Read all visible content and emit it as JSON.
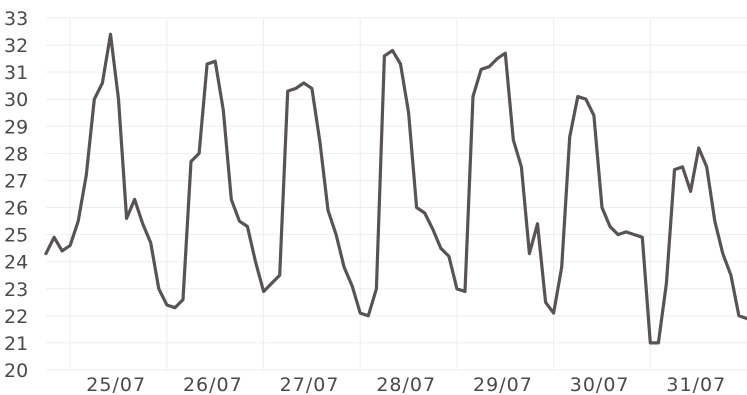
{
  "chart_data": {
    "type": "line",
    "title": "",
    "xlabel": "",
    "ylabel": "",
    "ylim": [
      20,
      33
    ],
    "yticks": [
      "20",
      "21",
      "22",
      "23",
      "24",
      "25",
      "26",
      "27",
      "28",
      "29",
      "30",
      "31",
      "32",
      "33"
    ],
    "xticks": [
      "25/07",
      "26/07",
      "27/07",
      "28/07",
      "29/07",
      "30/07",
      "31/07"
    ],
    "xlim": [
      "24/07 18:00",
      "31/07 24:00"
    ],
    "grid": true,
    "series_color": "#5a5354",
    "series": [
      {
        "x": [
          "24/07 18:00",
          "24/07 20:00",
          "24/07 22:00",
          "25/07 00:00",
          "25/07 02:00",
          "25/07 04:00",
          "25/07 06:00",
          "25/07 08:00",
          "25/07 10:00",
          "25/07 12:00",
          "25/07 14:00",
          "25/07 16:00",
          "25/07 18:00",
          "25/07 20:00",
          "25/07 22:00",
          "26/07 00:00",
          "26/07 02:00",
          "26/07 04:00",
          "26/07 06:00",
          "26/07 08:00",
          "26/07 10:00",
          "26/07 12:00",
          "26/07 14:00",
          "26/07 16:00",
          "26/07 18:00",
          "26/07 20:00",
          "26/07 22:00",
          "27/07 00:00",
          "27/07 02:00",
          "27/07 04:00",
          "27/07 06:00",
          "27/07 08:00",
          "27/07 10:00",
          "27/07 12:00",
          "27/07 14:00",
          "27/07 16:00",
          "27/07 18:00",
          "27/07 20:00",
          "27/07 22:00",
          "28/07 00:00",
          "28/07 02:00",
          "28/07 04:00",
          "28/07 06:00",
          "28/07 08:00",
          "28/07 10:00",
          "28/07 12:00",
          "28/07 14:00",
          "28/07 16:00",
          "28/07 18:00",
          "28/07 20:00",
          "28/07 22:00",
          "29/07 00:00",
          "29/07 02:00",
          "29/07 04:00",
          "29/07 06:00",
          "29/07 08:00",
          "29/07 10:00",
          "29/07 12:00",
          "29/07 14:00",
          "29/07 16:00",
          "29/07 18:00",
          "29/07 20:00",
          "29/07 22:00",
          "30/07 00:00",
          "30/07 02:00",
          "30/07 04:00",
          "30/07 06:00",
          "30/07 08:00",
          "30/07 10:00",
          "30/07 12:00",
          "30/07 14:00",
          "30/07 16:00",
          "30/07 18:00",
          "30/07 20:00",
          "30/07 22:00",
          "31/07 00:00",
          "31/07 02:00",
          "31/07 04:00",
          "31/07 06:00",
          "31/07 08:00",
          "31/07 10:00",
          "31/07 12:00",
          "31/07 14:00",
          "31/07 16:00",
          "31/07 18:00",
          "31/07 20:00",
          "31/07 22:00",
          "31/07 24:00"
        ],
        "y": [
          24.3,
          24.9,
          24.4,
          24.6,
          25.5,
          27.2,
          30.0,
          30.6,
          32.4,
          30.0,
          25.6,
          26.3,
          25.4,
          24.7,
          23.0,
          22.4,
          22.3,
          22.6,
          27.7,
          28.0,
          31.3,
          31.4,
          29.6,
          26.3,
          25.5,
          25.3,
          24.0,
          22.9,
          23.2,
          23.5,
          30.3,
          30.4,
          30.6,
          30.4,
          28.4,
          25.9,
          25.0,
          23.8,
          23.1,
          22.1,
          22.0,
          23.0,
          31.6,
          31.8,
          31.3,
          29.5,
          26.0,
          25.8,
          25.2,
          24.5,
          24.2,
          23.0,
          22.9,
          30.1,
          31.1,
          31.2,
          31.5,
          31.7,
          28.5,
          27.5,
          24.3,
          25.4,
          22.5,
          22.1,
          23.8,
          28.6,
          30.1,
          30.0,
          29.4,
          26.0,
          25.3,
          25.0,
          25.1,
          25.0,
          24.9,
          21.0,
          21.0,
          23.2,
          27.4,
          27.5,
          26.6,
          28.2,
          27.5,
          25.5,
          24.3,
          23.5,
          22.0,
          21.9
        ]
      }
    ]
  }
}
